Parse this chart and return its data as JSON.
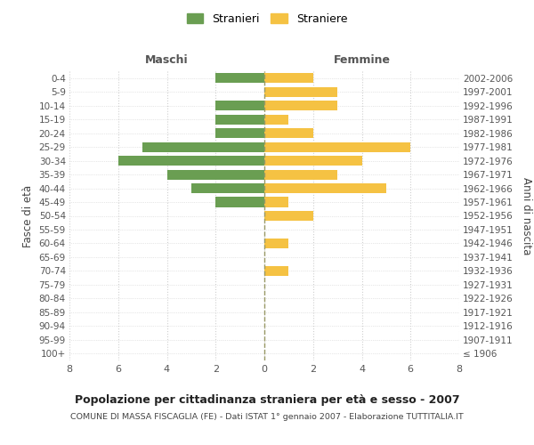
{
  "age_groups": [
    "100+",
    "95-99",
    "90-94",
    "85-89",
    "80-84",
    "75-79",
    "70-74",
    "65-69",
    "60-64",
    "55-59",
    "50-54",
    "45-49",
    "40-44",
    "35-39",
    "30-34",
    "25-29",
    "20-24",
    "15-19",
    "10-14",
    "5-9",
    "0-4"
  ],
  "birth_years": [
    "≤ 1906",
    "1907-1911",
    "1912-1916",
    "1917-1921",
    "1922-1926",
    "1927-1931",
    "1932-1936",
    "1937-1941",
    "1942-1946",
    "1947-1951",
    "1952-1956",
    "1957-1961",
    "1962-1966",
    "1967-1971",
    "1972-1976",
    "1977-1981",
    "1982-1986",
    "1987-1991",
    "1992-1996",
    "1997-2001",
    "2002-2006"
  ],
  "males": [
    0,
    0,
    0,
    0,
    0,
    0,
    0,
    0,
    0,
    0,
    0,
    2,
    3,
    4,
    6,
    5,
    2,
    2,
    2,
    0,
    2
  ],
  "females": [
    0,
    0,
    0,
    0,
    0,
    0,
    1,
    0,
    1,
    0,
    2,
    1,
    5,
    3,
    4,
    6,
    2,
    1,
    3,
    3,
    2
  ],
  "male_color": "#6a9e52",
  "female_color": "#f5c243",
  "center_line_color": "#999966",
  "grid_color": "#d0d0d0",
  "title": "Popolazione per cittadinanza straniera per età e sesso - 2007",
  "subtitle": "COMUNE DI MASSA FISCAGLIA (FE) - Dati ISTAT 1° gennaio 2007 - Elaborazione TUTTITALIA.IT",
  "xlabel_left": "Maschi",
  "xlabel_right": "Femmine",
  "ylabel_left": "Fasce di età",
  "ylabel_right": "Anni di nascita",
  "legend_male": "Stranieri",
  "legend_female": "Straniere",
  "xlim": 8,
  "bg_color": "#ffffff"
}
